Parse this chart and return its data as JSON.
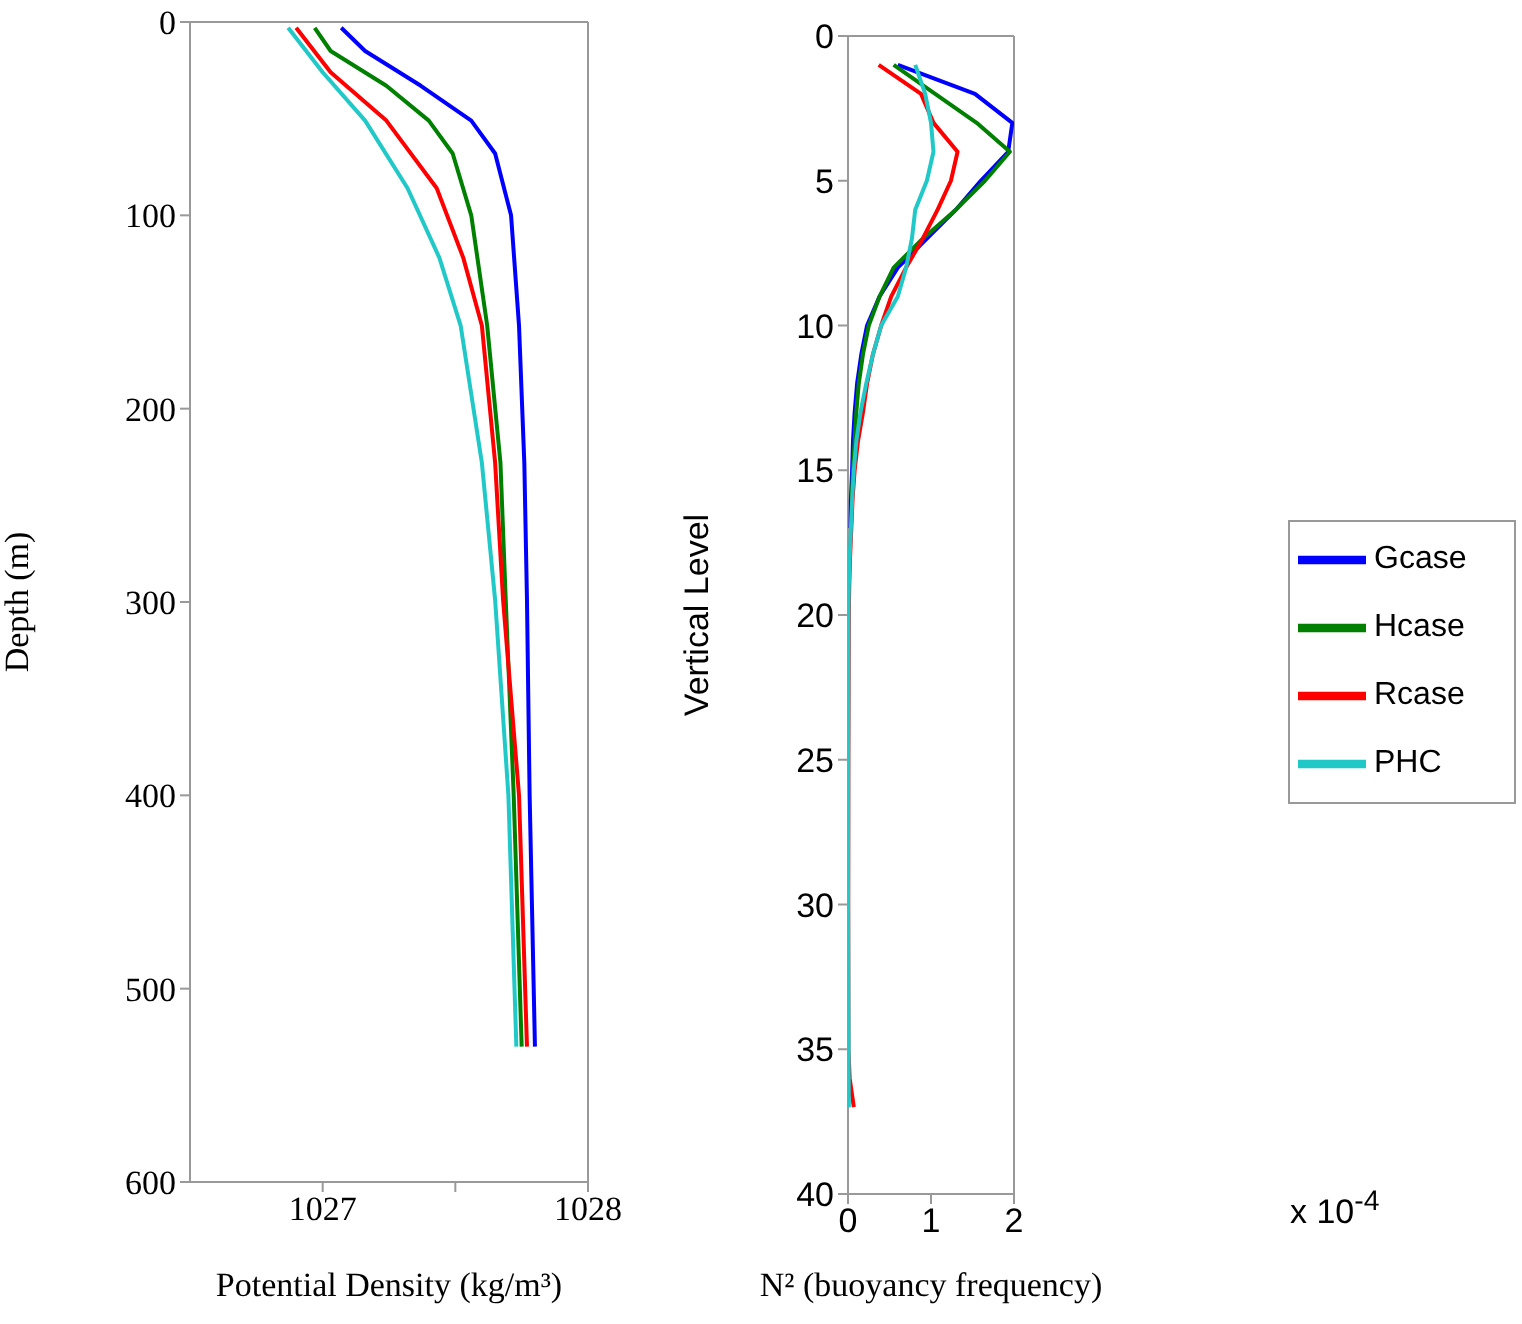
{
  "chart_data": [
    {
      "type": "line",
      "xlabel": "Potential Density (kg/m³)",
      "ylabel": "Depth (m)",
      "xlim": [
        1026.5,
        1028
      ],
      "xticks": [
        1027,
        {
          "value": 1027.5,
          "label": null
        },
        1028
      ],
      "ylim": [
        600,
        0
      ],
      "yticks": [
        0,
        100,
        200,
        300,
        400,
        500,
        600
      ],
      "grid": false,
      "series": [
        {
          "color": "#0000ff",
          "x": [
            1027.07,
            1027.16,
            1027.37,
            1027.56,
            1027.65,
            1027.71,
            1027.74,
            1027.76,
            1027.77,
            1027.78,
            1027.8
          ],
          "values": [
            3,
            15,
            33,
            51,
            68,
            100,
            157,
            228,
            299,
            400,
            530
          ]
        },
        {
          "color": "#008000",
          "x": [
            1026.97,
            1027.03,
            1027.24,
            1027.4,
            1027.49,
            1027.56,
            1027.62,
            1027.67,
            1027.69,
            1027.72,
            1027.75
          ],
          "values": [
            3,
            15,
            33,
            51,
            68,
            100,
            157,
            228,
            299,
            400,
            530
          ]
        },
        {
          "color": "#ff0000",
          "x": [
            1026.9,
            1027.03,
            1027.24,
            1027.43,
            1027.53,
            1027.6,
            1027.65,
            1027.68,
            1027.74,
            1027.77
          ],
          "values": [
            3,
            26,
            51,
            86,
            122,
            157,
            228,
            299,
            400,
            530
          ]
        },
        {
          "color": "#20c8c8",
          "x": [
            1026.87,
            1027.0,
            1027.16,
            1027.32,
            1027.44,
            1027.52,
            1027.6,
            1027.65,
            1027.7,
            1027.73
          ],
          "values": [
            3,
            26,
            51,
            86,
            122,
            157,
            228,
            299,
            400,
            530
          ]
        }
      ]
    },
    {
      "type": "line",
      "xlabel": "N² (buoyancy frequency)",
      "ylabel": "Vertical Level",
      "annotations": [
        "x 10$^{-4}$"
      ],
      "xlim": [
        0,
        2
      ],
      "xticks": [
        0,
        1,
        2
      ],
      "ylim": [
        40,
        0
      ],
      "yticks": [
        0,
        5,
        10,
        15,
        20,
        25,
        30,
        35,
        40
      ],
      "grid": false,
      "legend": "right",
      "series": [
        {
          "name": "Gcase",
          "color": "#0000ff",
          "x": [
            0.6,
            1.53,
            1.98,
            1.93,
            1.6,
            1.3,
            0.95,
            0.6,
            0.38,
            0.23,
            0.16,
            0.11,
            0.08,
            0.06,
            0.05,
            0.035,
            0.03
          ],
          "values": [
            1,
            2,
            3,
            4,
            5,
            6,
            7,
            8,
            9,
            10,
            11,
            12,
            13,
            14,
            15,
            16,
            17
          ]
        },
        {
          "name": "Hcase",
          "color": "#008000",
          "x": [
            0.55,
            1.05,
            1.55,
            1.95,
            1.65,
            1.3,
            0.9,
            0.55,
            0.38,
            0.25,
            0.18,
            0.13,
            0.1,
            0.08,
            0.06,
            0.045
          ],
          "values": [
            1,
            2,
            3,
            4,
            5,
            6,
            7,
            8,
            9,
            10,
            11,
            12,
            13,
            14,
            15,
            16
          ]
        },
        {
          "name": "Rcase",
          "color": "#ff0000",
          "x": [
            0.37,
            0.88,
            1.03,
            1.32,
            1.24,
            1.08,
            0.9,
            0.7,
            0.52,
            0.4,
            0.3,
            0.23,
            0.18,
            0.12,
            0.08,
            0.055,
            0.04,
            0.025,
            0.015,
            0.01,
            0.005,
            0.003,
            0.005,
            0.02,
            0.07
          ],
          "values": [
            1,
            2,
            3,
            4,
            5,
            6,
            7,
            8,
            9,
            10,
            11,
            12,
            13,
            14,
            15,
            16,
            17,
            18,
            19,
            20,
            25,
            30,
            35,
            36,
            37
          ]
        },
        {
          "name": "PHC",
          "color": "#20c8c8",
          "x": [
            0.81,
            0.93,
            1.0,
            1.03,
            0.95,
            0.81,
            0.77,
            0.7,
            0.6,
            0.4,
            0.3,
            0.22,
            0.15,
            0.1,
            0.07,
            0.05,
            0.035,
            0.02,
            0.01,
            0.005,
            0.002,
            0.001,
            0.01
          ],
          "values": [
            1,
            2,
            3,
            4,
            5,
            6,
            7,
            8,
            9,
            10,
            11,
            12,
            13,
            14,
            15,
            16,
            17,
            18,
            19,
            20,
            25,
            30,
            37
          ]
        }
      ]
    }
  ]
}
